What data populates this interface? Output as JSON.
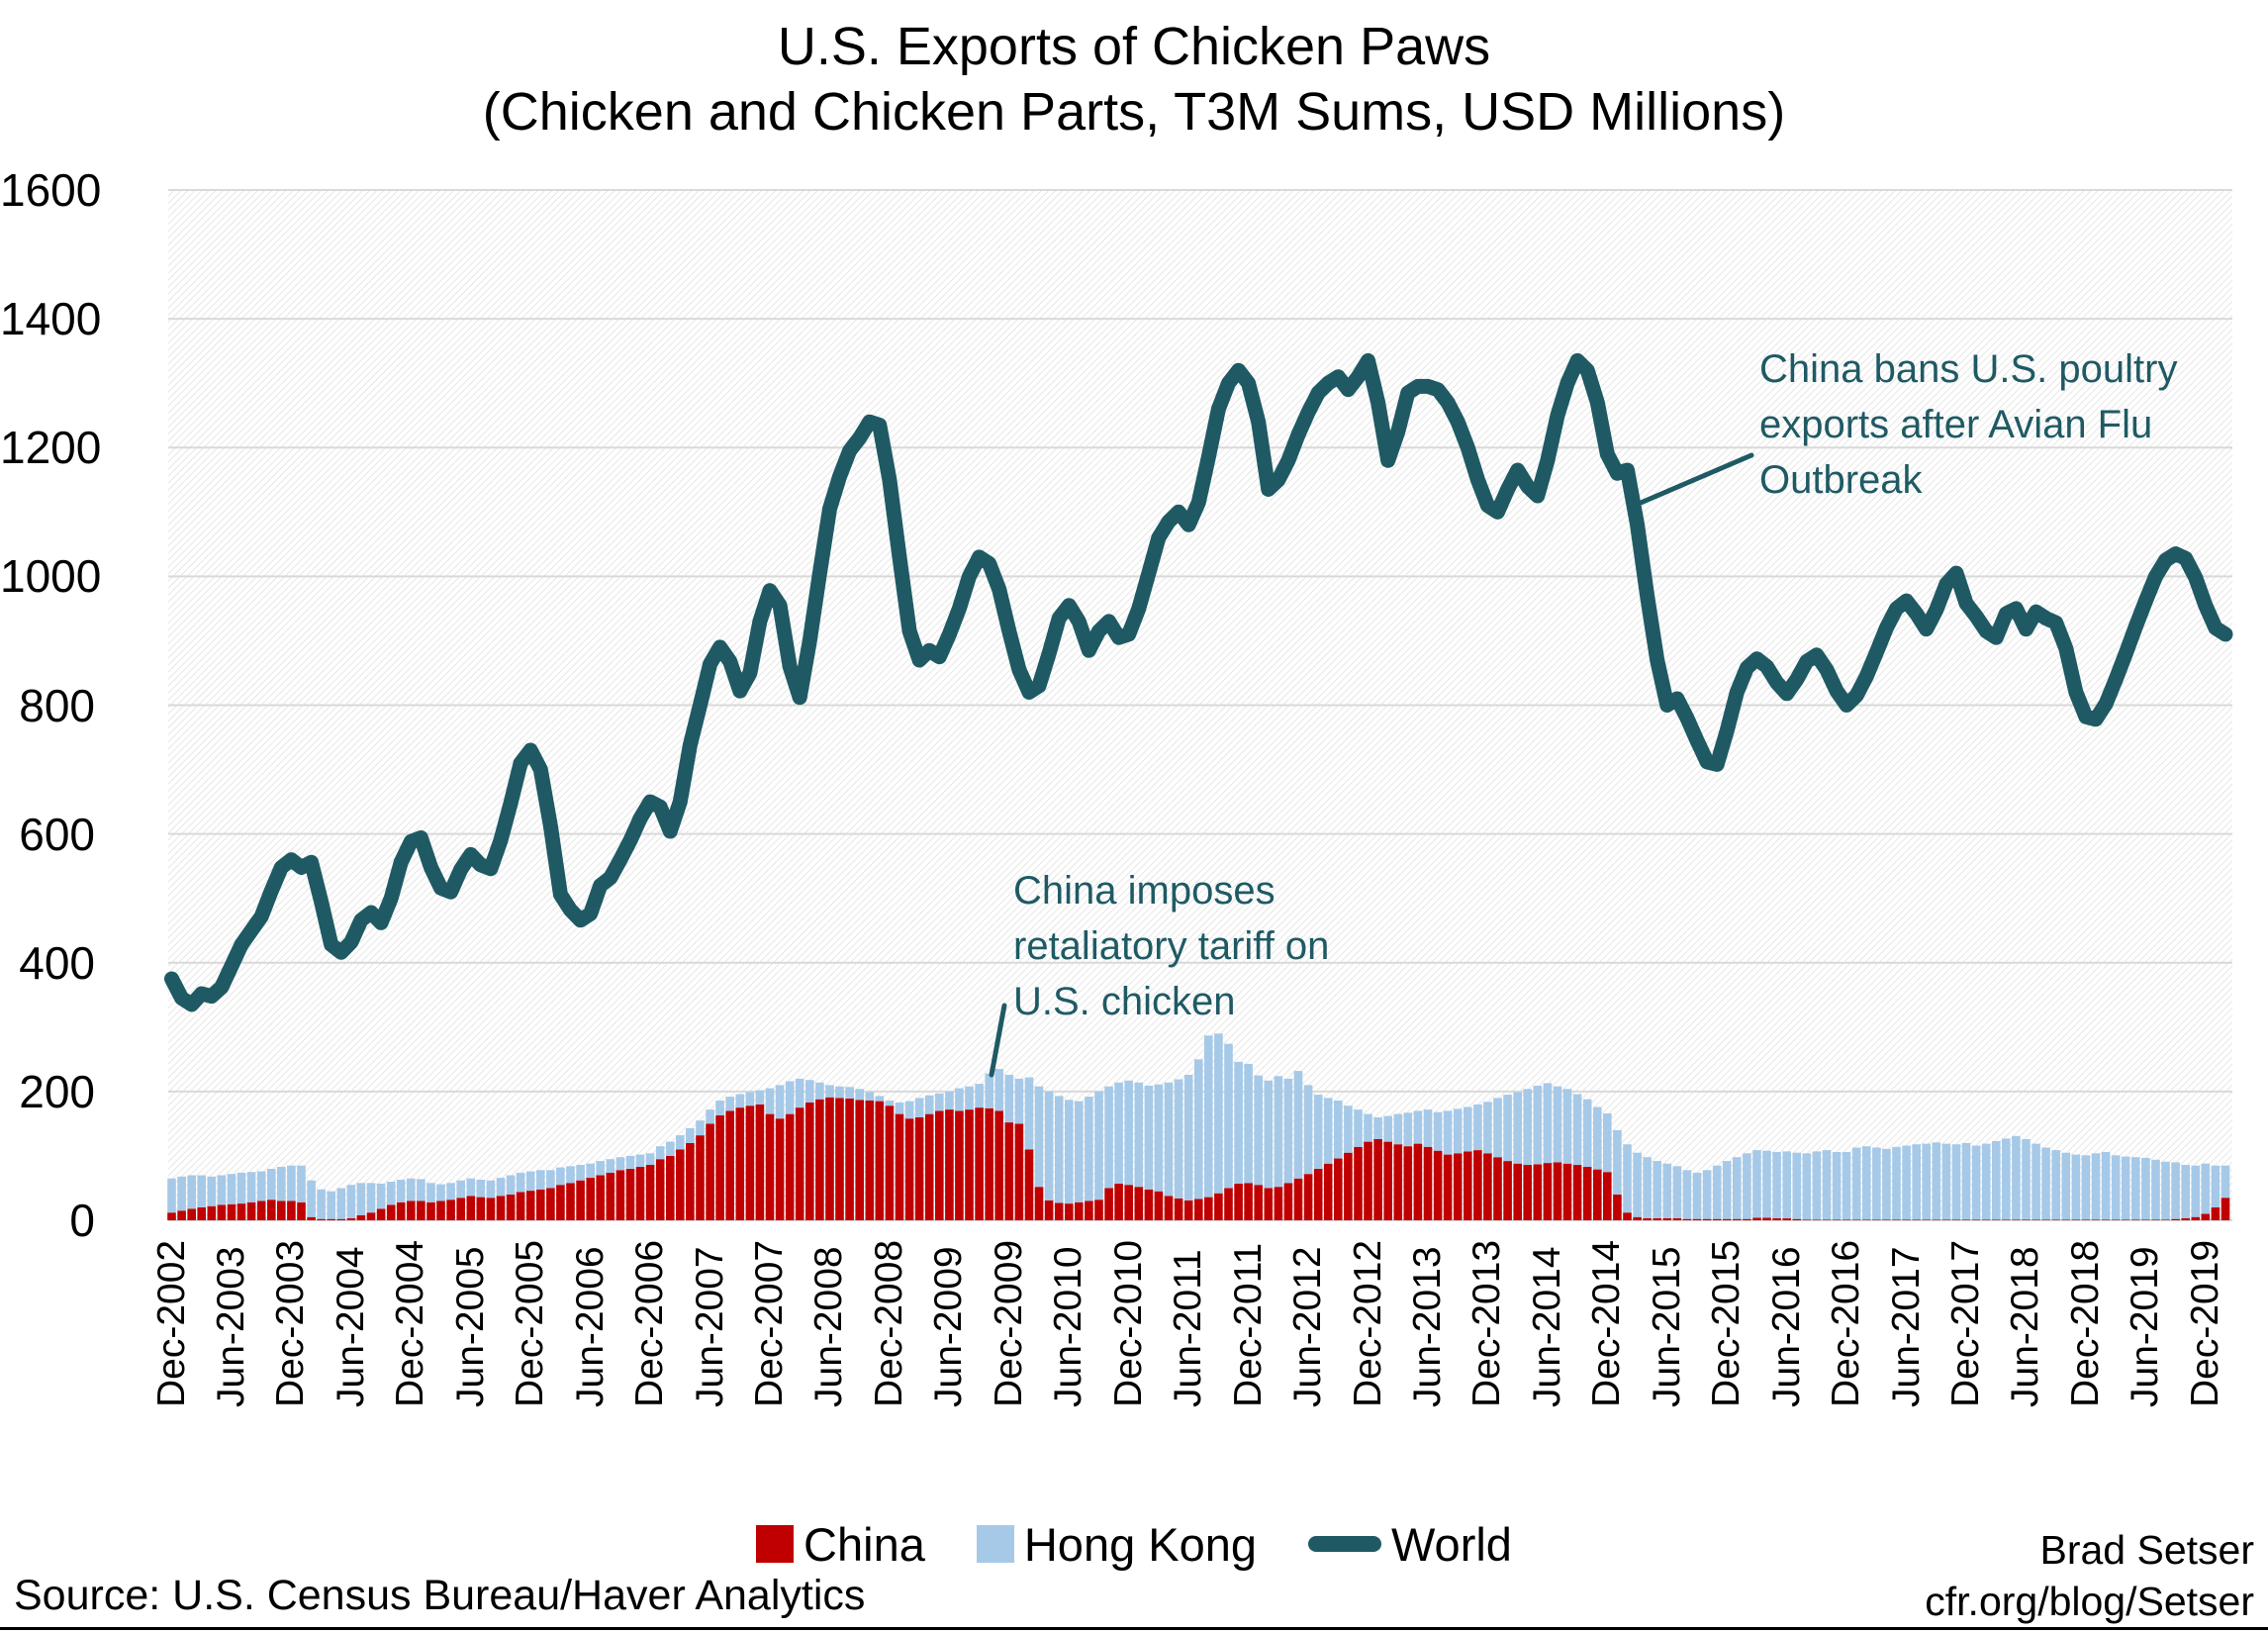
{
  "title": {
    "line1": "U.S. Exports of Chicken Paws",
    "line2": "(Chicken and Chicken Parts, T3M Sums, USD Millions)"
  },
  "source": "Source: U.S. Census Bureau/Haver Analytics",
  "credit": {
    "author": "Brad Setser",
    "site": "cfr.org/blog/Setser"
  },
  "colors": {
    "china": "#c00000",
    "hong_kong": "#a6c9e8",
    "world": "#1f5a64",
    "annotation": "#1f5a64",
    "gridline": "#d9d9d9",
    "hatch": "#dcdcdc",
    "text": "#000000"
  },
  "legend": [
    {
      "label": "China",
      "swatch": "square"
    },
    {
      "label": "Hong Kong",
      "swatch": "square"
    },
    {
      "label": "World",
      "swatch": "line"
    }
  ],
  "annotations": {
    "tariff": {
      "lines": [
        "China imposes",
        "retaliatory tariff on",
        "U.S. chicken"
      ]
    },
    "ban": {
      "lines": [
        "China bans U.S. poultry",
        "exports after Avian Flu",
        "Outbreak"
      ]
    }
  },
  "axes": {
    "y_ticks": [
      0,
      200,
      400,
      600,
      800,
      1000,
      1200,
      1400,
      1600
    ],
    "x_tick_labels": [
      "Dec-2002",
      "Jun-2003",
      "Dec-2003",
      "Jun-2004",
      "Dec-2004",
      "Jun-2005",
      "Dec-2005",
      "Jun-2006",
      "Dec-2006",
      "Jun-2007",
      "Dec-2007",
      "Jun-2008",
      "Dec-2008",
      "Jun-2009",
      "Dec-2009",
      "Jun-2010",
      "Dec-2010",
      "Jun-2011",
      "Dec-2011",
      "Jun-2012",
      "Dec-2012",
      "Jun-2013",
      "Dec-2013",
      "Jun-2014",
      "Dec-2014",
      "Jun-2015",
      "Dec-2015",
      "Jun-2016",
      "Dec-2016",
      "Jun-2017",
      "Dec-2017",
      "Jun-2018",
      "Dec-2018",
      "Jun-2019",
      "Dec-2019"
    ],
    "x_tick_every_months": 6
  },
  "chart_data": {
    "type": "combo",
    "frequency": "monthly",
    "x_start": "Dec-2002",
    "x_end": "Feb-2020",
    "ylim": [
      0,
      1600
    ],
    "grid": true,
    "legend_position": "bottom",
    "series": [
      {
        "name": "China",
        "type": "bar",
        "stacked": true,
        "values": [
          12,
          15,
          18,
          20,
          22,
          24,
          25,
          26,
          28,
          30,
          32,
          30,
          30,
          28,
          5,
          2,
          2,
          2,
          3,
          8,
          12,
          18,
          24,
          28,
          30,
          30,
          28,
          30,
          32,
          35,
          38,
          36,
          35,
          38,
          40,
          44,
          46,
          48,
          50,
          55,
          58,
          62,
          66,
          70,
          74,
          78,
          80,
          83,
          86,
          95,
          100,
          110,
          120,
          132,
          150,
          163,
          170,
          175,
          178,
          180,
          165,
          158,
          165,
          175,
          183,
          188,
          191,
          190,
          189,
          187,
          186,
          185,
          178,
          165,
          158,
          160,
          165,
          170,
          172,
          170,
          172,
          175,
          174,
          170,
          152,
          150,
          110,
          52,
          31,
          27,
          26,
          28,
          30,
          32,
          50,
          57,
          55,
          52,
          48,
          45,
          38,
          34,
          31,
          33,
          36,
          42,
          50,
          57,
          58,
          55,
          50,
          52,
          58,
          65,
          72,
          80,
          88,
          96,
          105,
          114,
          122,
          126,
          122,
          118,
          115,
          119,
          114,
          108,
          102,
          104,
          107,
          109,
          104,
          98,
          92,
          88,
          86,
          87,
          89,
          90,
          88,
          86,
          83,
          79,
          75,
          40,
          12,
          5,
          3,
          3,
          3,
          3,
          2,
          2,
          2,
          2,
          2,
          2,
          2,
          4,
          4,
          3,
          3,
          2,
          1,
          1,
          1,
          1,
          1,
          1,
          1,
          1,
          1,
          1,
          1,
          1,
          1,
          1,
          1,
          1,
          1,
          1,
          1,
          1,
          1,
          1,
          1,
          1,
          1,
          1,
          1,
          1,
          1,
          1,
          1,
          1,
          1,
          1,
          1,
          1,
          1,
          2,
          3,
          5,
          10,
          20,
          35
        ]
      },
      {
        "name": "Hong Kong",
        "type": "bar",
        "stacked": true,
        "values": [
          53,
          53,
          52,
          50,
          46,
          46,
          47,
          48,
          47,
          46,
          48,
          53,
          55,
          57,
          57,
          46,
          43,
          48,
          52,
          50,
          46,
          39,
          36,
          35,
          35,
          34,
          30,
          26,
          26,
          27,
          27,
          27,
          27,
          28,
          30,
          30,
          30,
          30,
          28,
          27,
          26,
          24,
          22,
          22,
          21,
          20,
          20,
          19,
          18,
          20,
          22,
          22,
          23,
          23,
          22,
          23,
          22,
          21,
          21,
          22,
          40,
          52,
          51,
          45,
          35,
          26,
          19,
          18,
          18,
          17,
          13,
          8,
          8,
          18,
          27,
          30,
          29,
          27,
          28,
          35,
          36,
          37,
          54,
          65,
          74,
          70,
          112,
          156,
          169,
          166,
          161,
          157,
          162,
          168,
          158,
          157,
          162,
          162,
          161,
          166,
          176,
          185,
          195,
          217,
          251,
          248,
          224,
          189,
          185,
          170,
          167,
          172,
          162,
          167,
          138,
          115,
          102,
          90,
          73,
          58,
          43,
          34,
          40,
          47,
          52,
          51,
          58,
          60,
          68,
          69,
          69,
          71,
          80,
          92,
          103,
          111,
          118,
          122,
          124,
          118,
          116,
          110,
          105,
          97,
          91,
          100,
          106,
          100,
          95,
          89,
          85,
          81,
          76,
          72,
          76,
          83,
          90,
          96,
          102,
          105,
          104,
          103,
          104,
          103,
          103,
          106,
          108,
          105,
          105,
          112,
          114,
          112,
          110,
          113,
          115,
          117,
          118,
          120,
          118,
          117,
          119,
          115,
          118,
          122,
          126,
          130,
          125,
          118,
          112,
          108,
          104,
          101,
          100,
          103,
          105,
          100,
          98,
          97,
          96,
          93,
          90,
          88,
          83,
          80,
          78,
          65,
          50
        ]
      },
      {
        "name": "World",
        "type": "line",
        "values": [
          375,
          345,
          335,
          352,
          348,
          362,
          395,
          428,
          450,
          472,
          512,
          548,
          560,
          548,
          556,
          495,
          428,
          416,
          432,
          466,
          478,
          462,
          500,
          556,
          588,
          594,
          548,
          516,
          510,
          545,
          568,
          552,
          546,
          590,
          648,
          710,
          730,
          700,
          612,
          506,
          482,
          466,
          476,
          520,
          532,
          560,
          590,
          624,
          650,
          642,
          604,
          650,
          738,
          800,
          864,
          890,
          868,
          822,
          850,
          930,
          978,
          955,
          860,
          812,
          900,
          1005,
          1105,
          1155,
          1195,
          1215,
          1240,
          1235,
          1150,
          1030,
          915,
          870,
          885,
          875,
          910,
          950,
          1000,
          1030,
          1020,
          980,
          915,
          855,
          820,
          830,
          880,
          935,
          955,
          930,
          885,
          915,
          930,
          905,
          910,
          950,
          1005,
          1060,
          1085,
          1100,
          1080,
          1115,
          1185,
          1260,
          1300,
          1320,
          1300,
          1240,
          1135,
          1150,
          1180,
          1220,
          1255,
          1285,
          1300,
          1310,
          1290,
          1310,
          1335,
          1270,
          1180,
          1225,
          1285,
          1295,
          1295,
          1290,
          1270,
          1240,
          1200,
          1150,
          1110,
          1100,
          1135,
          1165,
          1140,
          1125,
          1180,
          1250,
          1300,
          1335,
          1320,
          1270,
          1190,
          1160,
          1165,
          1080,
          970,
          870,
          800,
          810,
          780,
          745,
          712,
          708,
          760,
          820,
          858,
          872,
          860,
          835,
          818,
          840,
          868,
          878,
          855,
          822,
          800,
          815,
          845,
          882,
          920,
          950,
          962,
          942,
          918,
          948,
          988,
          1005,
          958,
          938,
          915,
          905,
          942,
          950,
          918,
          945,
          935,
          928,
          888,
          820,
          782,
          778,
          802,
          840,
          880,
          922,
          962,
          1000,
          1025,
          1035,
          1028,
          998,
          955,
          920,
          910
        ]
      }
    ]
  }
}
